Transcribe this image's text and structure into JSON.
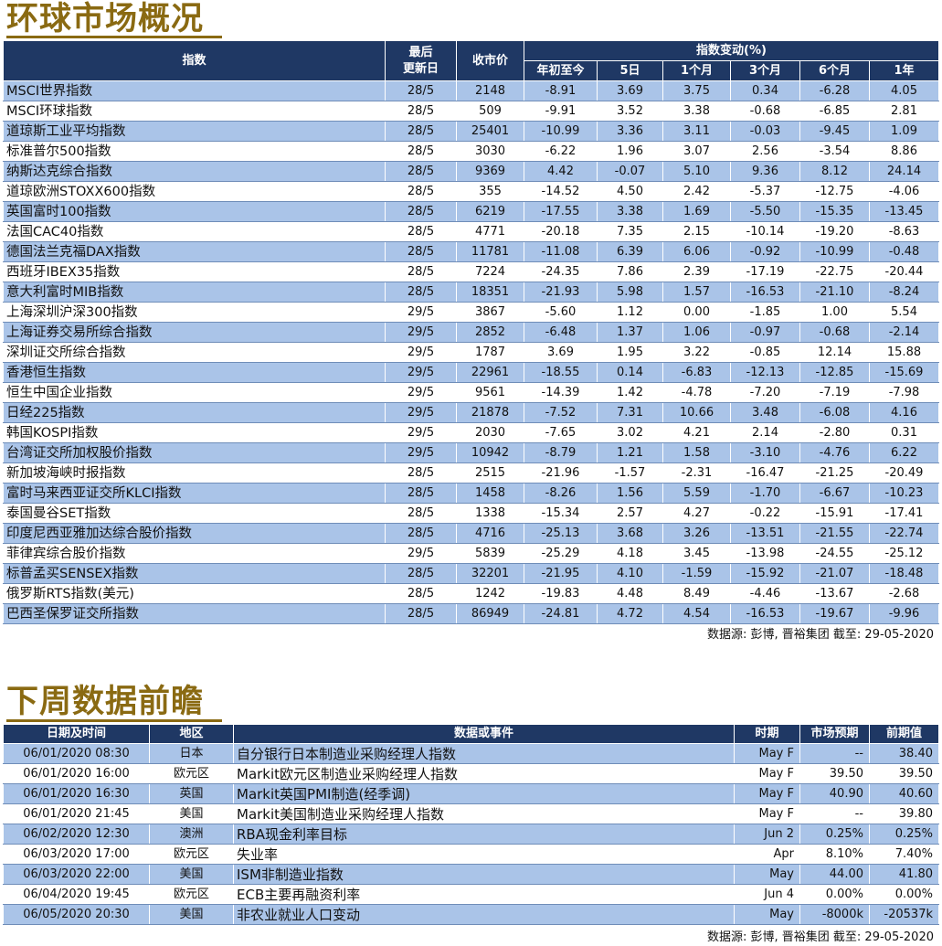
{
  "sections": {
    "market_title": "环球市场概况",
    "calendar_title": "下周数据前瞻"
  },
  "market_table": {
    "headers": {
      "index": "指数",
      "last_update_line1": "最后",
      "last_update_line2": "更新日",
      "close": "收市价",
      "change_group": "指数变动(%)",
      "ytd": "年初至今",
      "d5": "5日",
      "m1": "1个月",
      "m3": "3个月",
      "m6": "6个月",
      "y1": "1年"
    },
    "rows": [
      [
        "MSCI世界指数",
        "28/5",
        "2148",
        "-8.91",
        "3.69",
        "3.75",
        "0.34",
        "-6.28",
        "4.05"
      ],
      [
        "MSCI环球指数",
        "28/5",
        "509",
        "-9.91",
        "3.52",
        "3.38",
        "-0.68",
        "-6.85",
        "2.81"
      ],
      [
        "道琼斯工业平均指数",
        "28/5",
        "25401",
        "-10.99",
        "3.36",
        "3.11",
        "-0.03",
        "-9.45",
        "1.09"
      ],
      [
        "标准普尔500指数",
        "28/5",
        "3030",
        "-6.22",
        "1.96",
        "3.07",
        "2.56",
        "-3.54",
        "8.86"
      ],
      [
        "纳斯达克综合指数",
        "28/5",
        "9369",
        "4.42",
        "-0.07",
        "5.10",
        "9.36",
        "8.12",
        "24.14"
      ],
      [
        "道琼欧洲STOXX600指数",
        "28/5",
        "355",
        "-14.52",
        "4.50",
        "2.42",
        "-5.37",
        "-12.75",
        "-4.06"
      ],
      [
        "英国富时100指数",
        "28/5",
        "6219",
        "-17.55",
        "3.38",
        "1.69",
        "-5.50",
        "-15.35",
        "-13.45"
      ],
      [
        "法国CAC40指数",
        "28/5",
        "4771",
        "-20.18",
        "7.35",
        "2.15",
        "-10.14",
        "-19.20",
        "-8.63"
      ],
      [
        "德国法兰克福DAX指数",
        "28/5",
        "11781",
        "-11.08",
        "6.39",
        "6.06",
        "-0.92",
        "-10.99",
        "-0.48"
      ],
      [
        "西班牙IBEX35指数",
        "28/5",
        "7224",
        "-24.35",
        "7.86",
        "2.39",
        "-17.19",
        "-22.75",
        "-20.44"
      ],
      [
        "意大利富时MIB指数",
        "28/5",
        "18351",
        "-21.93",
        "5.98",
        "1.57",
        "-16.53",
        "-21.10",
        "-8.24"
      ],
      [
        "上海深圳沪深300指数",
        "29/5",
        "3867",
        "-5.60",
        "1.12",
        "0.00",
        "-1.85",
        "1.00",
        "5.54"
      ],
      [
        "上海证券交易所综合指数",
        "29/5",
        "2852",
        "-6.48",
        "1.37",
        "1.06",
        "-0.97",
        "-0.68",
        "-2.14"
      ],
      [
        "深圳证交所综合指数",
        "29/5",
        "1787",
        "3.69",
        "1.95",
        "3.22",
        "-0.85",
        "12.14",
        "15.88"
      ],
      [
        "香港恒生指数",
        "29/5",
        "22961",
        "-18.55",
        "0.14",
        "-6.83",
        "-12.13",
        "-12.85",
        "-15.69"
      ],
      [
        "恒生中国企业指数",
        "29/5",
        "9561",
        "-14.39",
        "1.42",
        "-4.78",
        "-7.20",
        "-7.19",
        "-7.98"
      ],
      [
        "日经225指数",
        "29/5",
        "21878",
        "-7.52",
        "7.31",
        "10.66",
        "3.48",
        "-6.08",
        "4.16"
      ],
      [
        "韩国KOSPI指数",
        "29/5",
        "2030",
        "-7.65",
        "3.02",
        "4.21",
        "2.14",
        "-2.80",
        "0.31"
      ],
      [
        "台湾证交所加权股价指数",
        "29/5",
        "10942",
        "-8.79",
        "1.21",
        "1.58",
        "-3.10",
        "-4.76",
        "6.22"
      ],
      [
        "新加坡海峡时报指数",
        "28/5",
        "2515",
        "-21.96",
        "-1.57",
        "-2.31",
        "-16.47",
        "-21.25",
        "-20.49"
      ],
      [
        "富时马来西亚证交所KLCI指数",
        "28/5",
        "1458",
        "-8.26",
        "1.56",
        "5.59",
        "-1.70",
        "-6.67",
        "-10.23"
      ],
      [
        "泰国曼谷SET指数",
        "28/5",
        "1338",
        "-15.34",
        "2.57",
        "4.27",
        "-0.22",
        "-15.91",
        "-17.41"
      ],
      [
        "印度尼西亚雅加达综合股价指数",
        "28/5",
        "4716",
        "-25.13",
        "3.68",
        "3.26",
        "-13.51",
        "-21.55",
        "-22.74"
      ],
      [
        "菲律宾综合股价指数",
        "29/5",
        "5839",
        "-25.29",
        "4.18",
        "3.45",
        "-13.98",
        "-24.55",
        "-25.12"
      ],
      [
        "标普孟买SENSEX指数",
        "28/5",
        "32201",
        "-21.95",
        "4.10",
        "-1.59",
        "-15.92",
        "-21.07",
        "-18.48"
      ],
      [
        "俄罗斯RTS指数(美元)",
        "28/5",
        "1242",
        "-19.83",
        "4.48",
        "8.49",
        "-4.46",
        "-13.67",
        "-2.68"
      ],
      [
        "巴西圣保罗证交所指数",
        "28/5",
        "86949",
        "-24.81",
        "4.72",
        "4.54",
        "-16.53",
        "-19.67",
        "-9.96"
      ]
    ],
    "source": "数据源: 彭博, 晋裕集团 截至: 29-05-2020"
  },
  "calendar_table": {
    "headers": {
      "datetime": "日期及时间",
      "region": "地区",
      "event": "数据或事件",
      "period": "时期",
      "forecast": "市场预期",
      "previous": "前期值"
    },
    "rows": [
      [
        "06/01/2020 08:30",
        "日本",
        "自分银行日本制造业采购经理人指数",
        "May F",
        "--",
        "38.40"
      ],
      [
        "06/01/2020 16:00",
        "欧元区",
        "Markit欧元区制造业采购经理人指数",
        "May F",
        "39.50",
        "39.50"
      ],
      [
        "06/01/2020 16:30",
        "英国",
        "Markit英国PMI制造(经季调)",
        "May F",
        "40.90",
        "40.60"
      ],
      [
        "06/01/2020 21:45",
        "美国",
        "Markit美国制造业采购经理人指数",
        "May F",
        "--",
        "39.80"
      ],
      [
        "06/02/2020 12:30",
        "澳洲",
        "RBA现金利率目标",
        "Jun 2",
        "0.25%",
        "0.25%"
      ],
      [
        "06/03/2020 17:00",
        "欧元区",
        "失业率",
        "Apr",
        "8.10%",
        "7.40%"
      ],
      [
        "06/03/2020 22:00",
        "美国",
        "ISM非制造业指数",
        "May",
        "44.00",
        "41.80"
      ],
      [
        "06/04/2020 19:45",
        "欧元区",
        "ECB主要再融资利率",
        "Jun 4",
        "0.00%",
        "0.00%"
      ],
      [
        "06/05/2020 20:30",
        "美国",
        "非农业就业人口变动",
        "May",
        "-8000k",
        "-20537k"
      ]
    ],
    "source": "数据源: 彭博, 晋裕集团 截至: 29-05-2020"
  }
}
